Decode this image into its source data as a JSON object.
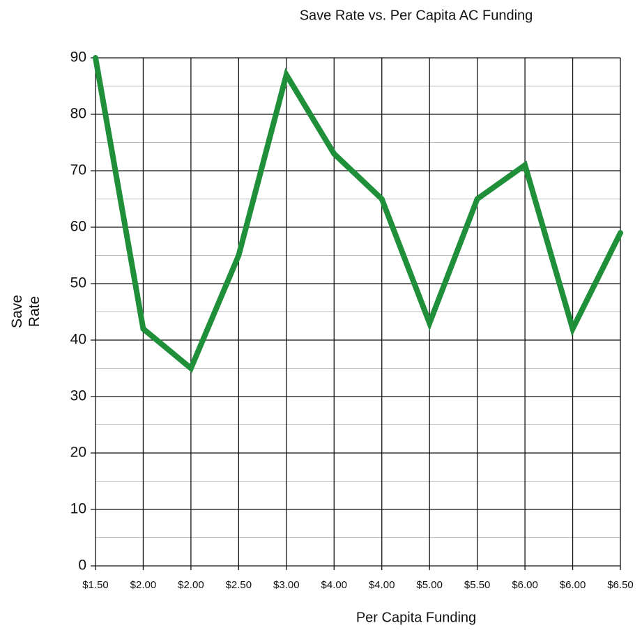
{
  "chart_data": {
    "type": "line",
    "title": "Save Rate vs. Per Capita AC Funding",
    "x_label": "Per Capita Funding",
    "y_label": "Save Rate",
    "categories": [
      "$1.50",
      "$2.00",
      "$2.00",
      "$2.50",
      "$3.00",
      "$4.00",
      "$4.00",
      "$5.00",
      "$5.50",
      "$6.00",
      "$6.00",
      "$6.50"
    ],
    "series": [
      {
        "name": "Save Rate",
        "color": "#1f8f3a",
        "values": [
          90,
          42,
          35,
          55,
          87,
          73,
          65,
          43,
          65,
          71,
          42,
          59
        ]
      }
    ],
    "ylim": [
      0,
      90
    ],
    "yticks": [
      0,
      10,
      20,
      30,
      40,
      50,
      60,
      70,
      80,
      90
    ],
    "minor_yticks": [
      5,
      15,
      25,
      35,
      45,
      55,
      65,
      75,
      85
    ],
    "grid": true
  }
}
